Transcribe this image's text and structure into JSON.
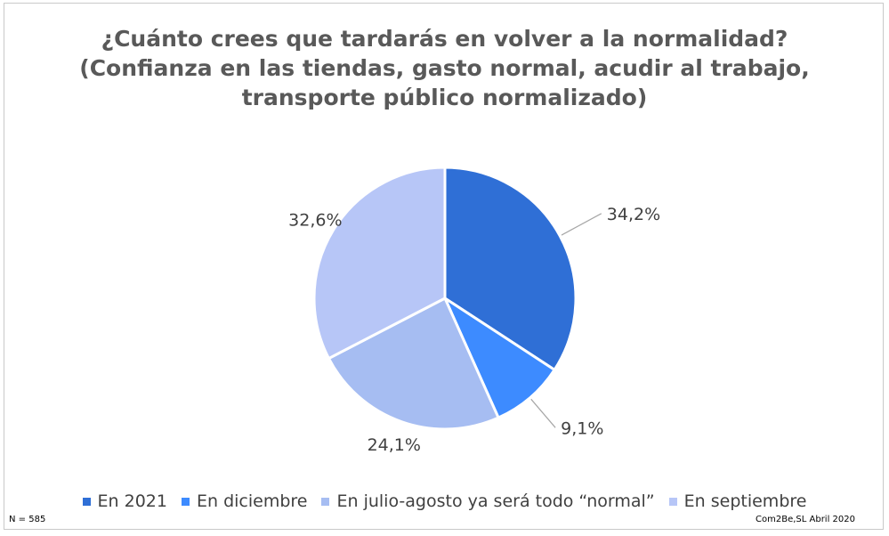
{
  "chart_data": {
    "type": "pie",
    "title_lines": [
      "¿Cuánto crees que tardarás en volver a la normalidad?",
      "(Confianza en las tiendas, gasto normal, acudir al trabajo,",
      "transporte público normalizado)"
    ],
    "categories": [
      "En 2021",
      "En diciembre",
      "En julio-agosto ya será todo “normal”",
      "En septiembre"
    ],
    "values": [
      34.2,
      9.1,
      24.1,
      32.6
    ],
    "labels": [
      "34,2%",
      "9,1%",
      "24,1%",
      "32,6%"
    ],
    "colors": [
      "#2f6fd6",
      "#3d8bff",
      "#a6bdf2",
      "#b7c6f7"
    ],
    "legend_position": "bottom"
  },
  "footer": {
    "sample": "N = 585",
    "source": "Com2Be,SL Abril 2020"
  }
}
